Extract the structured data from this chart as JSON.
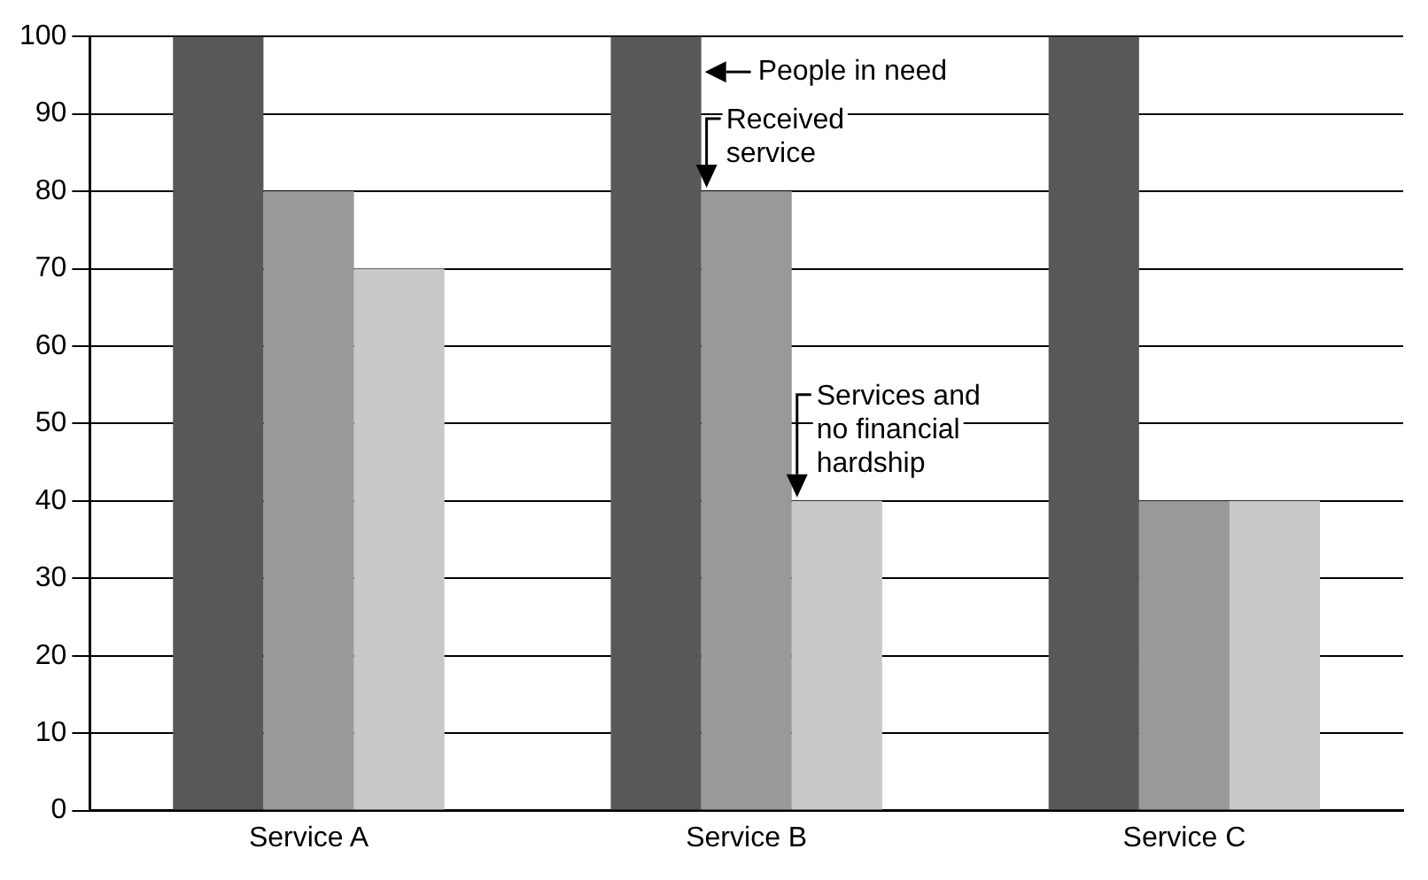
{
  "chart_data": {
    "type": "bar",
    "categories": [
      "Service A",
      "Service B",
      "Service C"
    ],
    "series": [
      {
        "name": "People in need",
        "color": "#58585a",
        "values": [
          100,
          100,
          100
        ]
      },
      {
        "name": "Received service",
        "color": "#98999b",
        "values": [
          80,
          80,
          40
        ]
      },
      {
        "name": "Services and no financial hardship",
        "color": "#c7c8ca",
        "values": [
          70,
          40,
          40
        ]
      }
    ],
    "ylim": [
      0,
      100
    ],
    "yticks": [
      0,
      10,
      20,
      30,
      40,
      50,
      60,
      70,
      80,
      90,
      100
    ],
    "grid": "y",
    "legend": false
  }
}
